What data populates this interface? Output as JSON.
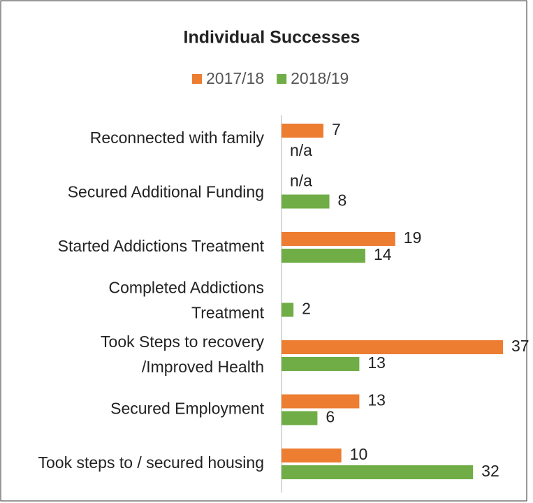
{
  "chart_data": {
    "type": "bar",
    "orientation": "horizontal",
    "title": "Individual Successes",
    "categories": [
      "Reconnected with family",
      "Secured Additional Funding",
      "Started Addictions Treatment",
      "Completed Addictions\nTreatment",
      "Took Steps to recovery\n/Improved Health",
      "Secured Employment",
      "Took steps to / secured housing"
    ],
    "series": [
      {
        "name": "2017/18",
        "color": "#ed7d31",
        "values": [
          7,
          null,
          19,
          null,
          37,
          13,
          10
        ],
        "value_labels": [
          "7",
          "n/a",
          "19",
          null,
          "37",
          "13",
          "10"
        ]
      },
      {
        "name": "2018/19",
        "color": "#70ad47",
        "values": [
          null,
          8,
          14,
          2,
          13,
          6,
          32
        ],
        "value_labels": [
          "n/a",
          "8",
          "14",
          "2",
          "13",
          "6",
          "32"
        ]
      }
    ],
    "legend": "top"
  }
}
